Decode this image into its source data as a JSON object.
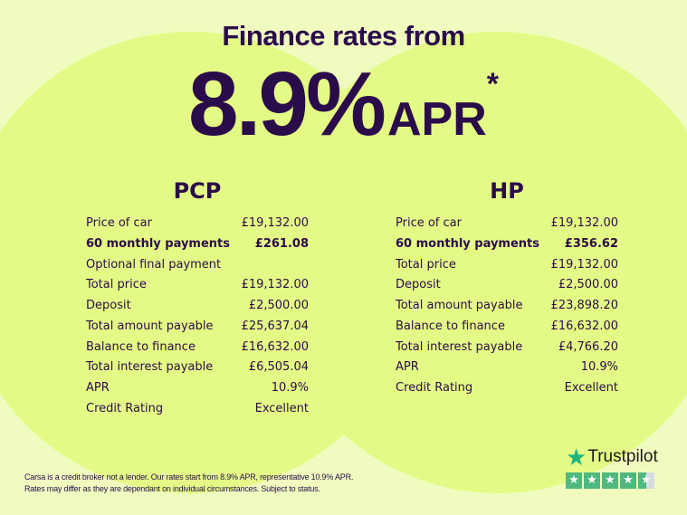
{
  "header": {
    "title": "Finance rates from",
    "rate": "8.9%",
    "rate_suffix": "APR",
    "asterisk": "*"
  },
  "pcp": {
    "heading": "PCP",
    "rows": [
      {
        "label": "Price of car",
        "value": "£19,132.00"
      },
      {
        "label": "60 monthly payments",
        "value": "£261.08",
        "bold": true
      },
      {
        "label": "Optional final payment",
        "value": ""
      },
      {
        "label": "Total price",
        "value": "£19,132.00"
      },
      {
        "label": "Deposit",
        "value": "£2,500.00"
      },
      {
        "label": "Total amount payable",
        "value": "£25,637.04"
      },
      {
        "label": "Balance to finance",
        "value": "£16,632.00"
      },
      {
        "label": "Total interest payable",
        "value": "£6,505.04"
      },
      {
        "label": "APR",
        "value": "10.9%"
      },
      {
        "label": "Credit Rating",
        "value": "Excellent"
      }
    ]
  },
  "hp": {
    "heading": "HP",
    "rows": [
      {
        "label": "Price of car",
        "value": "£19,132.00"
      },
      {
        "label": "60 monthly payments",
        "value": "£356.62",
        "bold": true
      },
      {
        "label": "Total price",
        "value": "£19,132.00"
      },
      {
        "label": "Deposit",
        "value": "£2,500.00"
      },
      {
        "label": "Total amount payable",
        "value": "£23,898.20"
      },
      {
        "label": "Balance to finance",
        "value": "£16,632.00"
      },
      {
        "label": "Total interest payable",
        "value": "£4,766.20"
      },
      {
        "label": "APR",
        "value": "10.9%"
      },
      {
        "label": "Credit Rating",
        "value": "Excellent"
      }
    ]
  },
  "disclaimer": {
    "line1": "Carsa is a credit broker not a lender. Our rates start from 8.9% APR, representative 10.9% APR.",
    "line2": "Rates may differ as they are dependant on individual circumstances. Subject to status."
  },
  "trustpilot": {
    "brand": "Trustpilot",
    "rating": 4.5,
    "max": 5,
    "icon": "star-icon"
  },
  "colors": {
    "background": "#f0fcbf",
    "circle": "#e4fa86",
    "text": "#2a0c4a",
    "trustpilot_green": "#1fb57a"
  }
}
